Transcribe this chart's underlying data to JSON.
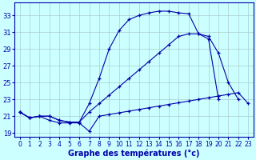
{
  "bg_color": "#ccffff",
  "grid_color": "#aacccc",
  "line_color": "#0000aa",
  "xlabel": "Graphe des températures (°c)",
  "xlim": [
    -0.5,
    23.5
  ],
  "ylim": [
    18.5,
    34.5
  ],
  "yticks": [
    19,
    21,
    23,
    25,
    27,
    29,
    31,
    33
  ],
  "xticks": [
    0,
    1,
    2,
    3,
    4,
    5,
    6,
    7,
    8,
    9,
    10,
    11,
    12,
    13,
    14,
    15,
    16,
    17,
    18,
    19,
    20,
    21,
    22,
    23
  ],
  "lines": [
    {
      "x": [
        0,
        1,
        2,
        3,
        4,
        5,
        6,
        7,
        8,
        9,
        10,
        11,
        12,
        13,
        14,
        15,
        16,
        17,
        18,
        19,
        20,
        21,
        22,
        23
      ],
      "y": [
        21.5,
        20.8,
        21.0,
        20.5,
        20.2,
        20.2,
        20.2,
        19.2,
        21.0,
        21.2,
        21.4,
        21.6,
        21.8,
        22.0,
        22.2,
        22.4,
        22.6,
        22.8,
        23.0,
        23.2,
        23.4,
        23.6,
        23.8,
        22.5
      ]
    },
    {
      "x": [
        0,
        1,
        2,
        3,
        4,
        5,
        6,
        7,
        8,
        9,
        10,
        11,
        12,
        13,
        14,
        15,
        16,
        17,
        18,
        19,
        20,
        21,
        22,
        23
      ],
      "y": [
        21.5,
        20.8,
        21.0,
        21.0,
        20.5,
        20.3,
        20.3,
        21.5,
        22.5,
        23.5,
        24.5,
        25.5,
        26.5,
        27.5,
        28.5,
        29.5,
        30.5,
        30.8,
        30.8,
        30.5,
        28.5,
        25.0,
        23.0,
        null
      ]
    },
    {
      "x": [
        0,
        1,
        2,
        3,
        4,
        5,
        6,
        7,
        8,
        9,
        10,
        11,
        12,
        13,
        14,
        15,
        16,
        17,
        18,
        19,
        20,
        21,
        22,
        23
      ],
      "y": [
        21.5,
        20.8,
        21.0,
        21.0,
        20.5,
        20.3,
        20.3,
        22.5,
        25.5,
        29.0,
        31.2,
        32.5,
        33.0,
        33.3,
        33.5,
        33.5,
        33.3,
        33.2,
        30.8,
        30.2,
        23.0,
        null,
        null,
        null
      ]
    }
  ]
}
